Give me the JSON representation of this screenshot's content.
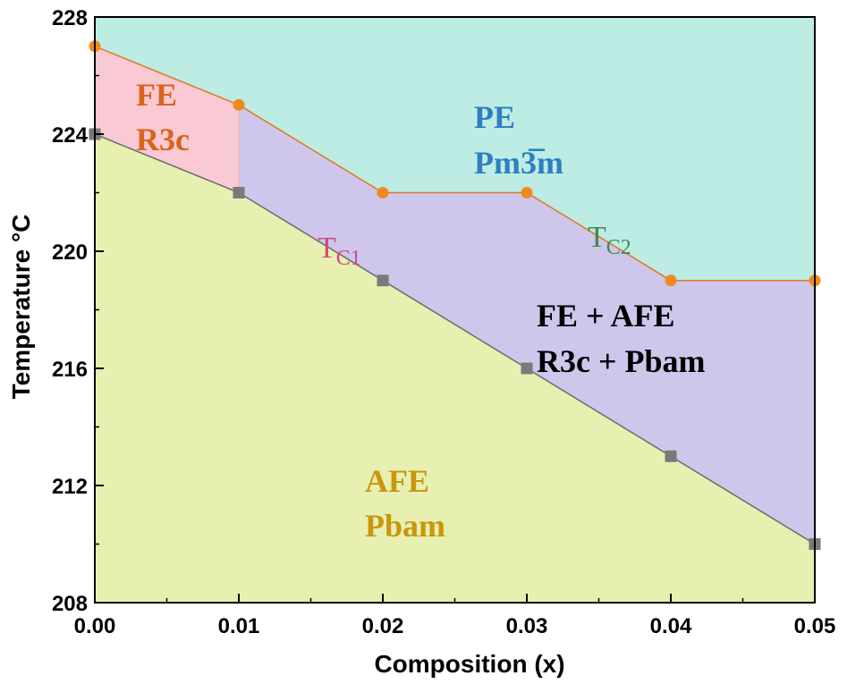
{
  "chart_data": {
    "type": "line",
    "xlabel": "Composition (x)",
    "ylabel": "Temperature °C",
    "xlim": [
      0.0,
      0.05
    ],
    "ylim": [
      208,
      228
    ],
    "x_ticks": [
      "0.00",
      "0.01",
      "0.02",
      "0.03",
      "0.04",
      "0.05"
    ],
    "y_ticks": [
      "208",
      "212",
      "216",
      "220",
      "224",
      "228"
    ],
    "grid": false,
    "series": [
      {
        "name": "TC2",
        "marker": "circle",
        "color": "#f08a1e",
        "x": [
          0.0,
          0.01,
          0.02,
          0.03,
          0.04,
          0.05
        ],
        "y": [
          227,
          225,
          222,
          222,
          219,
          219
        ]
      },
      {
        "name": "TC1",
        "marker": "square",
        "color": "#7a7a7a",
        "x": [
          0.0,
          0.01,
          0.02,
          0.03,
          0.04,
          0.05
        ],
        "y": [
          224,
          222,
          219,
          216,
          213,
          210
        ]
      }
    ],
    "regions": [
      {
        "lines": [
          "PE",
          "Pm3̅m"
        ],
        "color": "#bdece4",
        "text_color": "#2e7fc1"
      },
      {
        "lines": [
          "FE",
          "R3c"
        ],
        "color": "#f9c9d4",
        "text_color": "#d9641a"
      },
      {
        "lines": [
          "FE + AFE",
          "R3c + Pbam"
        ],
        "color": "#cfc6ec",
        "text_color": "#000000"
      },
      {
        "lines": [
          "AFE",
          "Pbam"
        ],
        "color": "#e7efb1",
        "text_color": "#c9970c"
      }
    ],
    "annotations": [
      {
        "main": "T",
        "sub": "C1",
        "color": "#d24a7e"
      },
      {
        "main": "T",
        "sub": "C2",
        "color": "#3f8a55"
      }
    ]
  }
}
